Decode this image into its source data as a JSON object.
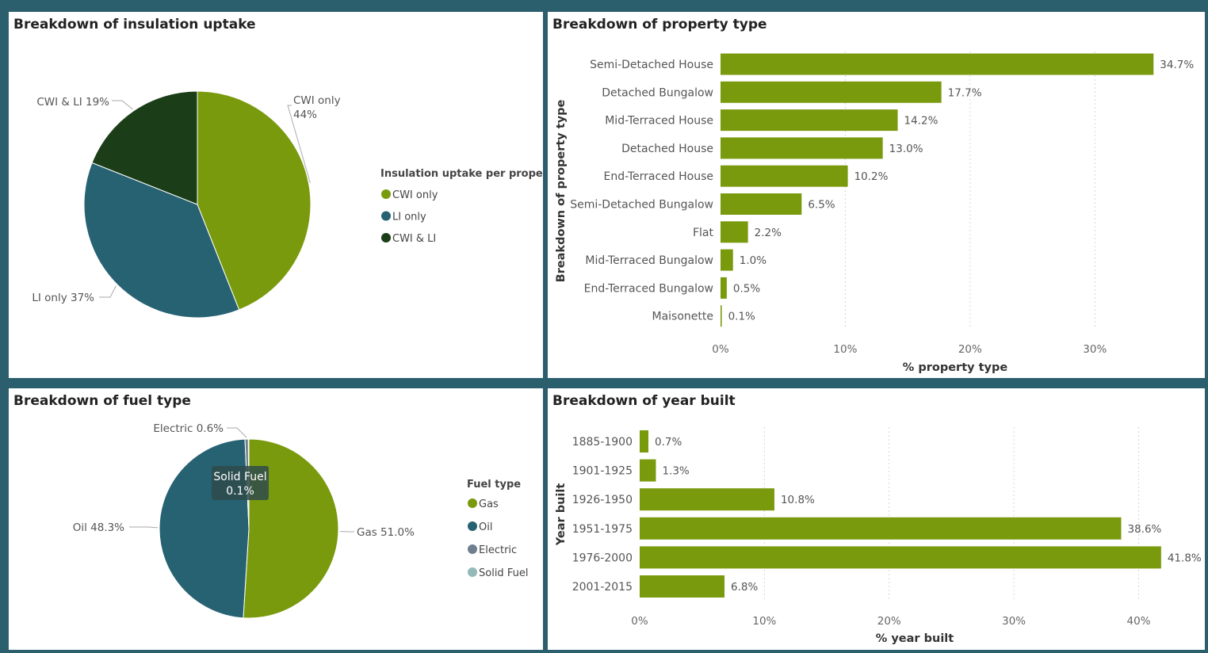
{
  "colors": {
    "green": "#7a9a0e",
    "teal": "#276273",
    "dark_green": "#1b3d18",
    "gray_blue": "#6f7f90",
    "light_teal": "#93b9b8",
    "background": "#2c5f6e"
  },
  "panels": {
    "insulation": {
      "title": "Breakdown of insulation uptake"
    },
    "property": {
      "title": "Breakdown of property type"
    },
    "fuel": {
      "title": "Breakdown of fuel type"
    },
    "year": {
      "title": "Breakdown of year built"
    }
  },
  "chart_data": [
    {
      "id": "insulation",
      "type": "pie",
      "title": "Breakdown of insulation uptake",
      "legend_title": "Insulation uptake per property",
      "legend_position": "right",
      "slices": [
        {
          "name": "CWI only",
          "value": 44,
          "label": "CWI only",
          "label2": "44%",
          "color": "#7a9a0e"
        },
        {
          "name": "LI only",
          "value": 37,
          "label": "LI only 37%",
          "color": "#276273"
        },
        {
          "name": "CWI & LI",
          "value": 19,
          "label": "CWI & LI 19%",
          "color": "#1b3d18"
        }
      ]
    },
    {
      "id": "property",
      "type": "bar",
      "orientation": "horizontal",
      "title": "Breakdown of property type",
      "xlabel": "% property type",
      "ylabel": "Breakdown of property type",
      "xlim": [
        0,
        35
      ],
      "xticks": [
        0,
        10,
        20,
        30
      ],
      "xtick_labels": [
        "0%",
        "10%",
        "20%",
        "30%"
      ],
      "grid": true,
      "categories": [
        "Semi-Detached House",
        "Detached Bungalow",
        "Mid-Terraced House",
        "Detached House",
        "End-Terraced House",
        "Semi-Detached Bungalow",
        "Flat",
        "Mid-Terraced Bungalow",
        "End-Terraced Bungalow",
        "Maisonette"
      ],
      "values": [
        34.7,
        17.7,
        14.2,
        13.0,
        10.2,
        6.5,
        2.2,
        1.0,
        0.5,
        0.1
      ],
      "data_labels": [
        "34.7%",
        "17.7%",
        "14.2%",
        "13.0%",
        "10.2%",
        "6.5%",
        "2.2%",
        "1.0%",
        "0.5%",
        "0.1%"
      ],
      "color": "#7a9a0e"
    },
    {
      "id": "fuel",
      "type": "pie",
      "title": "Breakdown of fuel type",
      "legend_title": "Fuel type",
      "legend_position": "right",
      "slices": [
        {
          "name": "Gas",
          "value": 51.0,
          "label": "Gas 51.0%",
          "color": "#7a9a0e"
        },
        {
          "name": "Oil",
          "value": 48.3,
          "label": "Oil 48.3%",
          "color": "#276273"
        },
        {
          "name": "Electric",
          "value": 0.6,
          "label": "Electric 0.6%",
          "color": "#6f7f90"
        },
        {
          "name": "Solid Fuel",
          "value": 0.1,
          "label": "",
          "color": "#93b9b8"
        }
      ],
      "tooltip": {
        "line1": "Solid Fuel",
        "line2": "0.1%"
      }
    },
    {
      "id": "year",
      "type": "bar",
      "orientation": "horizontal",
      "title": "Breakdown of year built",
      "xlabel": "% year built",
      "ylabel": "Year built",
      "xlim": [
        0,
        42
      ],
      "xticks": [
        0,
        10,
        20,
        30,
        40
      ],
      "xtick_labels": [
        "0%",
        "10%",
        "20%",
        "30%",
        "40%"
      ],
      "grid": true,
      "categories": [
        "1885-1900",
        "1901-1925",
        "1926-1950",
        "1951-1975",
        "1976-2000",
        "2001-2015"
      ],
      "values": [
        0.7,
        1.3,
        10.8,
        38.6,
        41.8,
        6.8
      ],
      "data_labels": [
        "0.7%",
        "1.3%",
        "10.8%",
        "38.6%",
        "41.8%",
        "6.8%"
      ],
      "color": "#7a9a0e"
    }
  ]
}
